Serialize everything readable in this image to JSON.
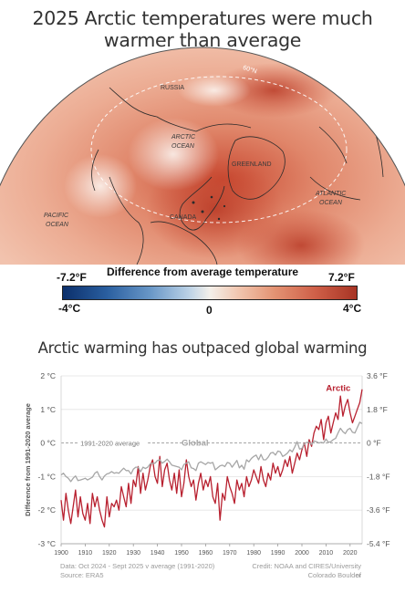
{
  "titles": {
    "main": "2025 Arctic temperatures were much warmer than average",
    "chart": "Arctic warming has outpaced global warming"
  },
  "map": {
    "labels": {
      "latitude": "60°N",
      "russia": "RUSSIA",
      "arctic_ocean_1": "ARCTIC",
      "arctic_ocean_2": "OCEAN",
      "greenland": "GREENLAND",
      "atlantic_1": "ATLANTIC",
      "atlantic_2": "OCEAN",
      "pacific_1": "PACIFIC",
      "pacific_2": "OCEAN",
      "canada": "CANADA"
    },
    "scale": {
      "label": "Difference from average temperature",
      "left_f": "-7.2°F",
      "right_f": "7.2°F",
      "left_c": "-4°C",
      "mid_c": "0",
      "right_c": "4°C"
    }
  },
  "colors": {
    "arctic": "#b8202f",
    "global": "#a6a6a6",
    "baseline": "#999999"
  },
  "chart_data": {
    "type": "line",
    "ylabel": "Difference from 1991-2020 average",
    "ylim": [
      -3,
      2
    ],
    "xlim": [
      1900,
      2025
    ],
    "x_ticks": [
      "1900",
      "1910",
      "1920",
      "1930",
      "1940",
      "1950",
      "1960",
      "1970",
      "1980",
      "1990",
      "2000",
      "2010",
      "2020"
    ],
    "y_ticks_left": [
      "2 °C",
      "1 °C",
      "0 °C",
      "-1 °C",
      "-2 °C",
      "-3 °C"
    ],
    "y_ticks_right": [
      "3.6 °F",
      "1.8 °F",
      "0 °F",
      "-1.8 °F",
      "-3.6 °F",
      "-5.4 °F"
    ],
    "baseline_label": "1991-2020 average",
    "series": [
      {
        "name": "Arctic",
        "x": [
          1900,
          1901,
          1902,
          1903,
          1904,
          1905,
          1906,
          1907,
          1908,
          1909,
          1910,
          1911,
          1912,
          1913,
          1914,
          1915,
          1916,
          1917,
          1918,
          1919,
          1920,
          1921,
          1922,
          1923,
          1924,
          1925,
          1926,
          1927,
          1928,
          1929,
          1930,
          1931,
          1932,
          1933,
          1934,
          1935,
          1936,
          1937,
          1938,
          1939,
          1940,
          1941,
          1942,
          1943,
          1944,
          1945,
          1946,
          1947,
          1948,
          1949,
          1950,
          1951,
          1952,
          1953,
          1954,
          1955,
          1956,
          1957,
          1958,
          1959,
          1960,
          1961,
          1962,
          1963,
          1964,
          1965,
          1966,
          1967,
          1968,
          1969,
          1970,
          1971,
          1972,
          1973,
          1974,
          1975,
          1976,
          1977,
          1978,
          1979,
          1980,
          1981,
          1982,
          1983,
          1984,
          1985,
          1986,
          1987,
          1988,
          1989,
          1990,
          1991,
          1992,
          1993,
          1994,
          1995,
          1996,
          1997,
          1998,
          1999,
          2000,
          2001,
          2002,
          2003,
          2004,
          2005,
          2006,
          2007,
          2008,
          2009,
          2010,
          2011,
          2012,
          2013,
          2014,
          2015,
          2016,
          2017,
          2018,
          2019,
          2020,
          2021,
          2022,
          2023,
          2024,
          2025
        ],
        "values": [
          -1.7,
          -2.3,
          -1.5,
          -2.0,
          -2.4,
          -1.9,
          -1.4,
          -2.2,
          -1.6,
          -2.1,
          -2.3,
          -1.8,
          -2.4,
          -1.5,
          -1.9,
          -1.6,
          -2.0,
          -2.3,
          -2.5,
          -1.6,
          -2.2,
          -1.8,
          -1.9,
          -1.7,
          -2.0,
          -1.3,
          -1.6,
          -1.9,
          -1.2,
          -1.8,
          -1.1,
          -1.3,
          -0.7,
          -1.5,
          -0.9,
          -1.4,
          -1.1,
          -0.7,
          -0.5,
          -1.0,
          -1.2,
          -0.4,
          -1.3,
          -0.8,
          -0.6,
          -1.1,
          -1.4,
          -0.9,
          -1.5,
          -0.8,
          -1.6,
          -1.2,
          -0.5,
          -1.0,
          -1.3,
          -1.1,
          -1.7,
          -1.2,
          -0.9,
          -1.4,
          -1.1,
          -1.3,
          -1.0,
          -1.6,
          -1.8,
          -1.2,
          -2.3,
          -1.5,
          -1.7,
          -1.0,
          -1.3,
          -1.5,
          -1.8,
          -1.1,
          -1.4,
          -1.2,
          -1.6,
          -1.0,
          -1.3,
          -1.1,
          -0.8,
          -1.0,
          -1.2,
          -0.7,
          -1.1,
          -1.3,
          -0.9,
          -1.1,
          -0.6,
          -0.9,
          -0.7,
          -1.0,
          -0.8,
          -0.5,
          -0.7,
          -0.4,
          -0.9,
          -0.6,
          -0.3,
          -0.5,
          -0.2,
          0.0,
          -0.4,
          0.1,
          -0.1,
          0.3,
          0.5,
          0.4,
          0.7,
          0.1,
          0.6,
          0.8,
          0.3,
          0.6,
          0.9,
          0.7,
          1.4,
          0.8,
          1.1,
          1.3,
          0.9,
          0.6,
          0.8,
          1.0,
          1.2,
          1.6
        ]
      },
      {
        "name": "Global",
        "x": [
          1900,
          1901,
          1902,
          1903,
          1904,
          1905,
          1906,
          1907,
          1908,
          1909,
          1910,
          1911,
          1912,
          1913,
          1914,
          1915,
          1916,
          1917,
          1918,
          1919,
          1920,
          1921,
          1922,
          1923,
          1924,
          1925,
          1926,
          1927,
          1928,
          1929,
          1930,
          1931,
          1932,
          1933,
          1934,
          1935,
          1936,
          1937,
          1938,
          1939,
          1940,
          1941,
          1942,
          1943,
          1944,
          1945,
          1946,
          1947,
          1948,
          1949,
          1950,
          1951,
          1952,
          1953,
          1954,
          1955,
          1956,
          1957,
          1958,
          1959,
          1960,
          1961,
          1962,
          1963,
          1964,
          1965,
          1966,
          1967,
          1968,
          1969,
          1970,
          1971,
          1972,
          1973,
          1974,
          1975,
          1976,
          1977,
          1978,
          1979,
          1980,
          1981,
          1982,
          1983,
          1984,
          1985,
          1986,
          1987,
          1988,
          1989,
          1990,
          1991,
          1992,
          1993,
          1994,
          1995,
          1996,
          1997,
          1998,
          1999,
          2000,
          2001,
          2002,
          2003,
          2004,
          2005,
          2006,
          2007,
          2008,
          2009,
          2010,
          2011,
          2012,
          2013,
          2014,
          2015,
          2016,
          2017,
          2018,
          2019,
          2020,
          2021,
          2022,
          2023,
          2024,
          2025
        ],
        "values": [
          -0.95,
          -0.9,
          -1.0,
          -1.05,
          -1.15,
          -1.05,
          -0.98,
          -1.12,
          -1.1,
          -1.08,
          -1.05,
          -1.1,
          -1.06,
          -1.02,
          -0.9,
          -0.85,
          -1.0,
          -1.1,
          -0.98,
          -0.92,
          -0.9,
          -0.85,
          -0.9,
          -0.88,
          -0.9,
          -0.82,
          -0.75,
          -0.82,
          -0.82,
          -0.92,
          -0.78,
          -0.72,
          -0.72,
          -0.86,
          -0.72,
          -0.76,
          -0.72,
          -0.62,
          -0.6,
          -0.6,
          -0.52,
          -0.5,
          -0.6,
          -0.55,
          -0.48,
          -0.56,
          -0.66,
          -0.68,
          -0.7,
          -0.72,
          -0.8,
          -0.64,
          -0.6,
          -0.56,
          -0.74,
          -0.76,
          -0.82,
          -0.6,
          -0.56,
          -0.6,
          -0.64,
          -0.58,
          -0.6,
          -0.58,
          -0.8,
          -0.74,
          -0.68,
          -0.66,
          -0.7,
          -0.58,
          -0.6,
          -0.72,
          -0.62,
          -0.52,
          -0.74,
          -0.66,
          -0.78,
          -0.5,
          -0.56,
          -0.46,
          -0.4,
          -0.36,
          -0.5,
          -0.34,
          -0.5,
          -0.5,
          -0.42,
          -0.3,
          -0.28,
          -0.36,
          -0.24,
          -0.26,
          -0.4,
          -0.36,
          -0.3,
          -0.2,
          -0.26,
          -0.12,
          0.04,
          -0.18,
          -0.16,
          -0.02,
          0.02,
          0.02,
          -0.04,
          0.06,
          0.04,
          0.0,
          0.02,
          0.0,
          0.12,
          0.02,
          0.04,
          0.1,
          0.14,
          0.3,
          0.44,
          0.34,
          0.28,
          0.4,
          0.44,
          0.32,
          0.3,
          0.46,
          0.62,
          0.58
        ]
      }
    ]
  },
  "footer": {
    "data_line1": "Data: Oct 2024 - Sept 2025 v average (1991-2020)",
    "data_line2": "Source: ERA5",
    "credit_line1": "Credit: NOAA and CIRES/University of",
    "credit_line2": "Colorado Boulder"
  }
}
